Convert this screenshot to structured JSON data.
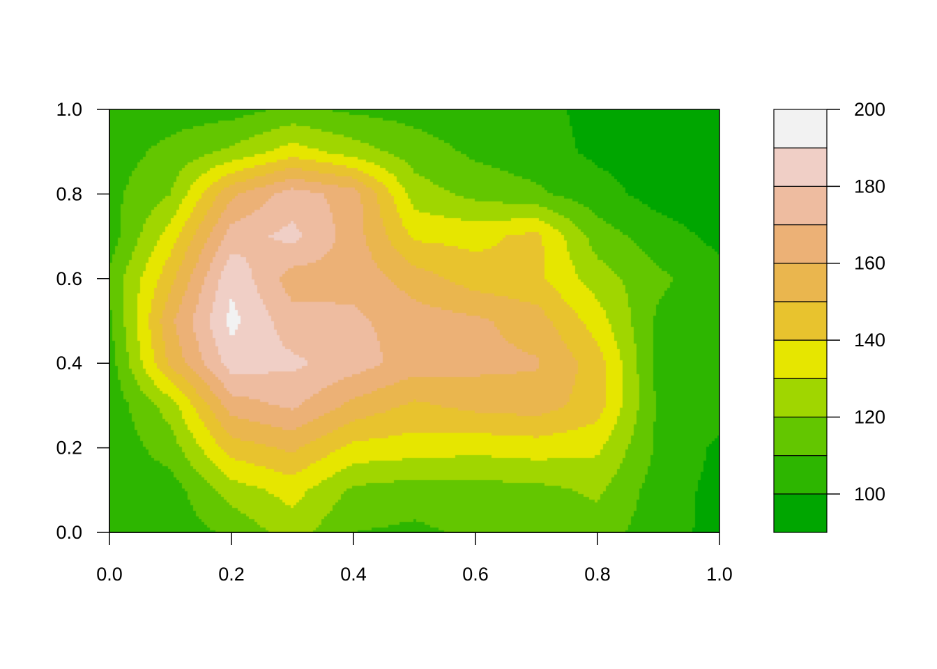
{
  "chart_data": {
    "type": "heatmap",
    "subtype": "filled-contour",
    "title": "",
    "xlabel": "",
    "ylabel": "",
    "xlim": [
      0,
      1
    ],
    "ylim": [
      0,
      1
    ],
    "x_ticks": [
      "0.0",
      "0.2",
      "0.4",
      "0.6",
      "0.8",
      "1.0"
    ],
    "y_ticks": [
      "0.0",
      "0.2",
      "0.4",
      "0.6",
      "0.8",
      "1.0"
    ],
    "grid_x": [
      0,
      0.1,
      0.2,
      0.3,
      0.4,
      0.5,
      0.6,
      0.7,
      0.8,
      0.9,
      1.0
    ],
    "grid_y": [
      0,
      0.1,
      0.2,
      0.3,
      0.4,
      0.5,
      0.6,
      0.7,
      0.8,
      0.9,
      1.0
    ],
    "z_rows_bottom_to_top": [
      [
        103,
        104,
        112,
        125,
        110,
        108,
        112,
        113,
        115,
        104,
        97
      ],
      [
        103,
        105,
        125,
        134,
        118,
        115,
        116,
        117,
        122,
        105,
        97
      ],
      [
        103,
        115,
        145,
        152,
        137,
        135,
        133,
        135,
        132,
        108,
        98
      ],
      [
        103,
        125,
        165,
        172,
        157,
        148,
        153,
        155,
        145,
        108,
        104
      ],
      [
        105,
        152,
        185,
        182,
        175,
        165,
        163,
        161,
        145,
        107,
        104
      ],
      [
        108,
        158,
        193,
        174,
        172,
        165,
        162,
        155,
        135,
        108,
        105
      ],
      [
        112,
        147,
        188,
        165,
        167,
        155,
        145,
        142,
        125,
        112,
        104
      ],
      [
        105,
        135,
        175,
        183,
        165,
        138,
        137,
        143,
        115,
        105,
        97
      ],
      [
        107,
        120,
        158,
        175,
        165,
        125,
        117,
        112,
        104,
        96,
        94
      ],
      [
        105,
        113,
        122,
        135,
        125,
        115,
        108,
        104,
        98,
        95,
        94
      ],
      [
        105,
        105,
        106,
        112,
        108,
        106,
        104,
        103,
        97,
        95,
        95
      ]
    ],
    "levels": [
      90,
      100,
      110,
      120,
      130,
      140,
      150,
      160,
      170,
      180,
      190,
      200
    ],
    "colors": [
      "#00A600",
      "#2DB600",
      "#63C600",
      "#A0D600",
      "#E6E600",
      "#E8C32E",
      "#EAB64E",
      "#ECB176",
      "#EEBCA0",
      "#F0CFC6",
      "#F2F2F2"
    ],
    "legend": {
      "placement": "right",
      "tick_labels": [
        "100",
        "120",
        "140",
        "160",
        "180",
        "200"
      ],
      "tick_values": [
        100,
        120,
        140,
        160,
        180,
        200
      ]
    }
  }
}
